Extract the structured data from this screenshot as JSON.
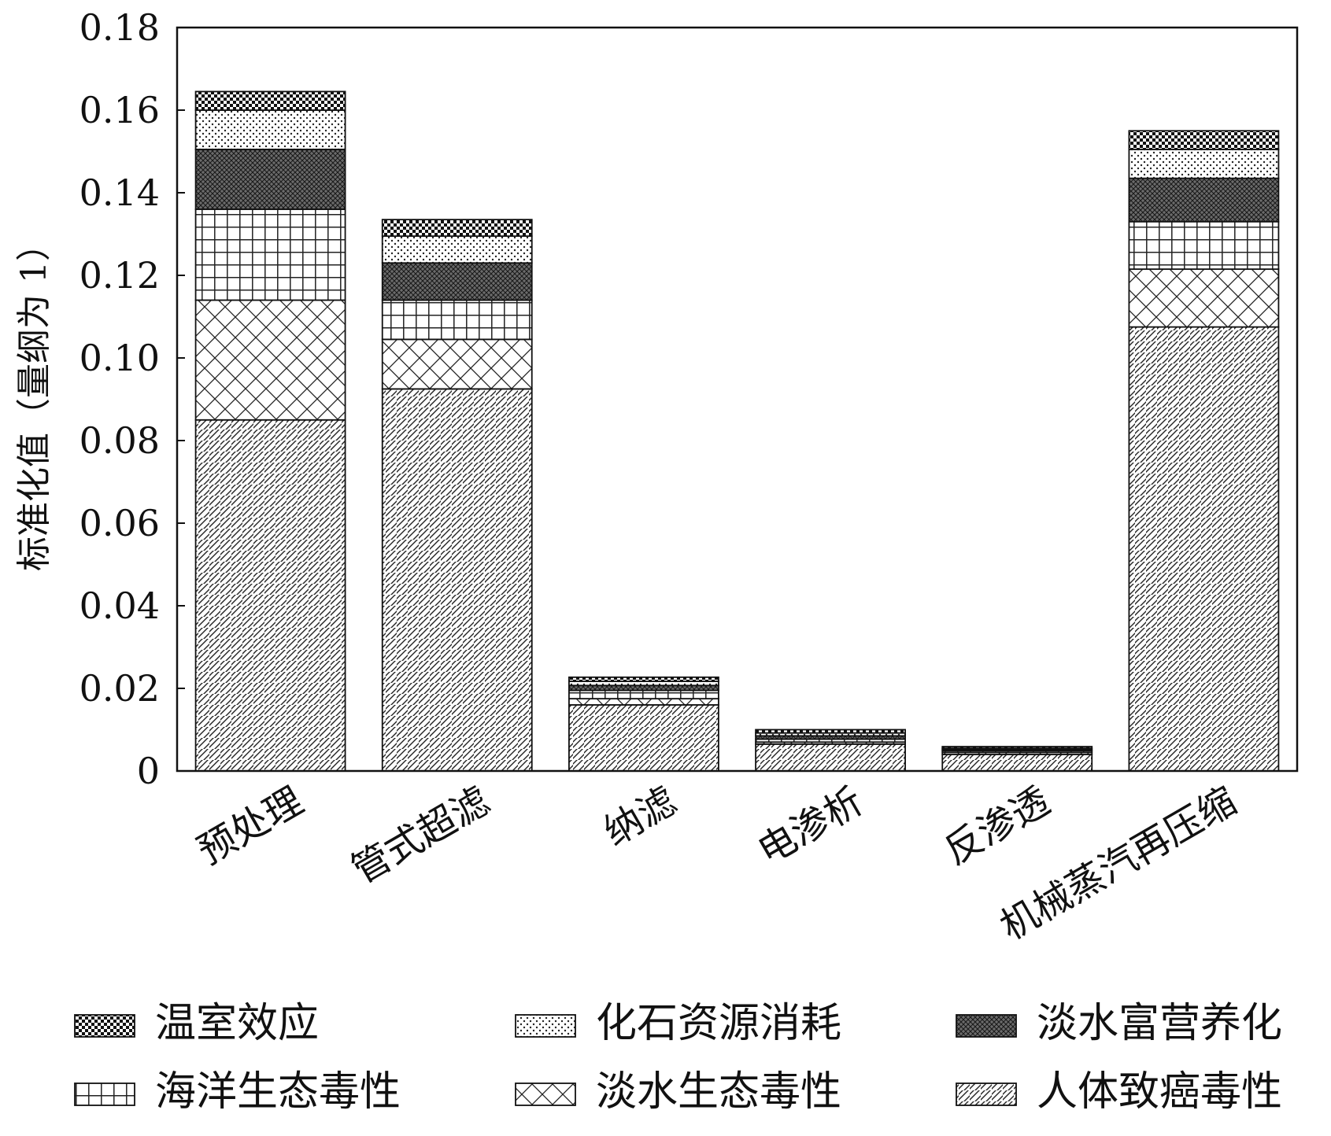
{
  "chart_data": {
    "type": "bar",
    "stacked": true,
    "title": "",
    "xlabel": "",
    "ylabel": "标准化值（量纲为 1）",
    "ylim": [
      0,
      0.18
    ],
    "yticks": [
      "0",
      "0.02",
      "0.04",
      "0.06",
      "0.08",
      "0.10",
      "0.12",
      "0.14",
      "0.16",
      "0.18"
    ],
    "categories": [
      "预处理",
      "管式超滤",
      "纳滤",
      "电渗析",
      "反渗透",
      "机械蒸汽再压缩"
    ],
    "grid": false,
    "legend_position": "bottom",
    "series": [
      {
        "name": "人体致癌毒性",
        "pattern": "diagonal-hatch",
        "values": [
          0.085,
          0.0925,
          0.016,
          0.0065,
          0.004,
          0.1075
        ]
      },
      {
        "name": "淡水生态毒性",
        "pattern": "cross-hatch",
        "values": [
          0.029,
          0.012,
          0.0015,
          0.0005,
          0.0005,
          0.014
        ]
      },
      {
        "name": "海洋生态毒性",
        "pattern": "grid",
        "values": [
          0.022,
          0.0095,
          0.002,
          0.0007,
          0.0004,
          0.0115
        ]
      },
      {
        "name": "淡水富营养化",
        "pattern": "dark-crosshatch",
        "values": [
          0.0145,
          0.009,
          0.0012,
          0.0008,
          0.0003,
          0.0105
        ]
      },
      {
        "name": "化石资源消耗",
        "pattern": "dots",
        "values": [
          0.0095,
          0.0065,
          0.001,
          0.0007,
          0.0003,
          0.007
        ]
      },
      {
        "name": "温室效应",
        "pattern": "checker",
        "values": [
          0.0045,
          0.004,
          0.001,
          0.0008,
          0.0004,
          0.0045
        ]
      }
    ],
    "colors": {
      "stroke": "#111111",
      "background": "#ffffff",
      "dark_fill": "#555555"
    }
  }
}
